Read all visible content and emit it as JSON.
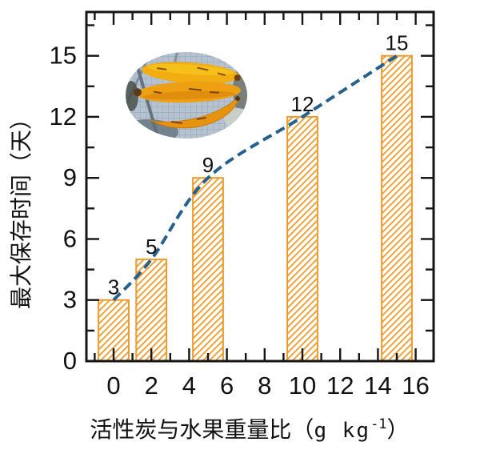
{
  "page": {
    "background": "#ffffff"
  },
  "chart_data": {
    "type": "bar",
    "title": "",
    "categories": [
      0,
      2,
      5,
      10,
      15
    ],
    "values": [
      3,
      5,
      9,
      12,
      15
    ],
    "bar_value_labels": [
      "3",
      "5",
      "9",
      "12",
      "15"
    ],
    "series": [
      {
        "name": "maximum-preservation-days-bars",
        "type": "bar",
        "x": [
          0,
          2,
          5,
          10,
          15
        ],
        "values": [
          3,
          5,
          9,
          12,
          15
        ]
      },
      {
        "name": "trend-curve",
        "type": "line",
        "style": "dashed",
        "x": [
          0,
          2,
          5,
          10,
          15
        ],
        "values": [
          3,
          5,
          9,
          12,
          15
        ]
      }
    ],
    "xlabel": "活性炭与水果重量比（g kg⁻¹）",
    "xlabel_parts": {
      "cjk": "活性炭与水果重量比",
      "open_paren": "（",
      "unit": "g kg",
      "superscript": "-1",
      "close_paren": "）"
    },
    "ylabel": "最大保存时间（天）",
    "x_ticks": [
      "0",
      "2",
      "4",
      "6",
      "8",
      "10",
      "12",
      "14",
      "16"
    ],
    "x_tick_values": [
      0,
      2,
      4,
      6,
      8,
      10,
      12,
      14,
      16
    ],
    "y_ticks": [
      "0",
      "3",
      "6",
      "9",
      "12",
      "15"
    ],
    "y_tick_values": [
      0,
      3,
      6,
      9,
      12,
      15
    ],
    "x_minor_step": 1,
    "y_minor_step": 1.5,
    "xlim": [
      -1.44,
      16.95
    ],
    "ylim": [
      0,
      17.15
    ],
    "bar_width_units": 1.6,
    "grid": false,
    "legend": "none",
    "colors": {
      "bar_outline": "#ed9b2f",
      "bar_hatch": "#f0a23a",
      "bar_fill": "#ffffff",
      "trend_line": "#26618e",
      "axis": "#151515",
      "text": "#111111"
    },
    "inset_image": {
      "name": "bananas-photo",
      "shape": "ellipse",
      "description": "ripe spotted bananas on a wire rack, oval photo inset"
    }
  }
}
